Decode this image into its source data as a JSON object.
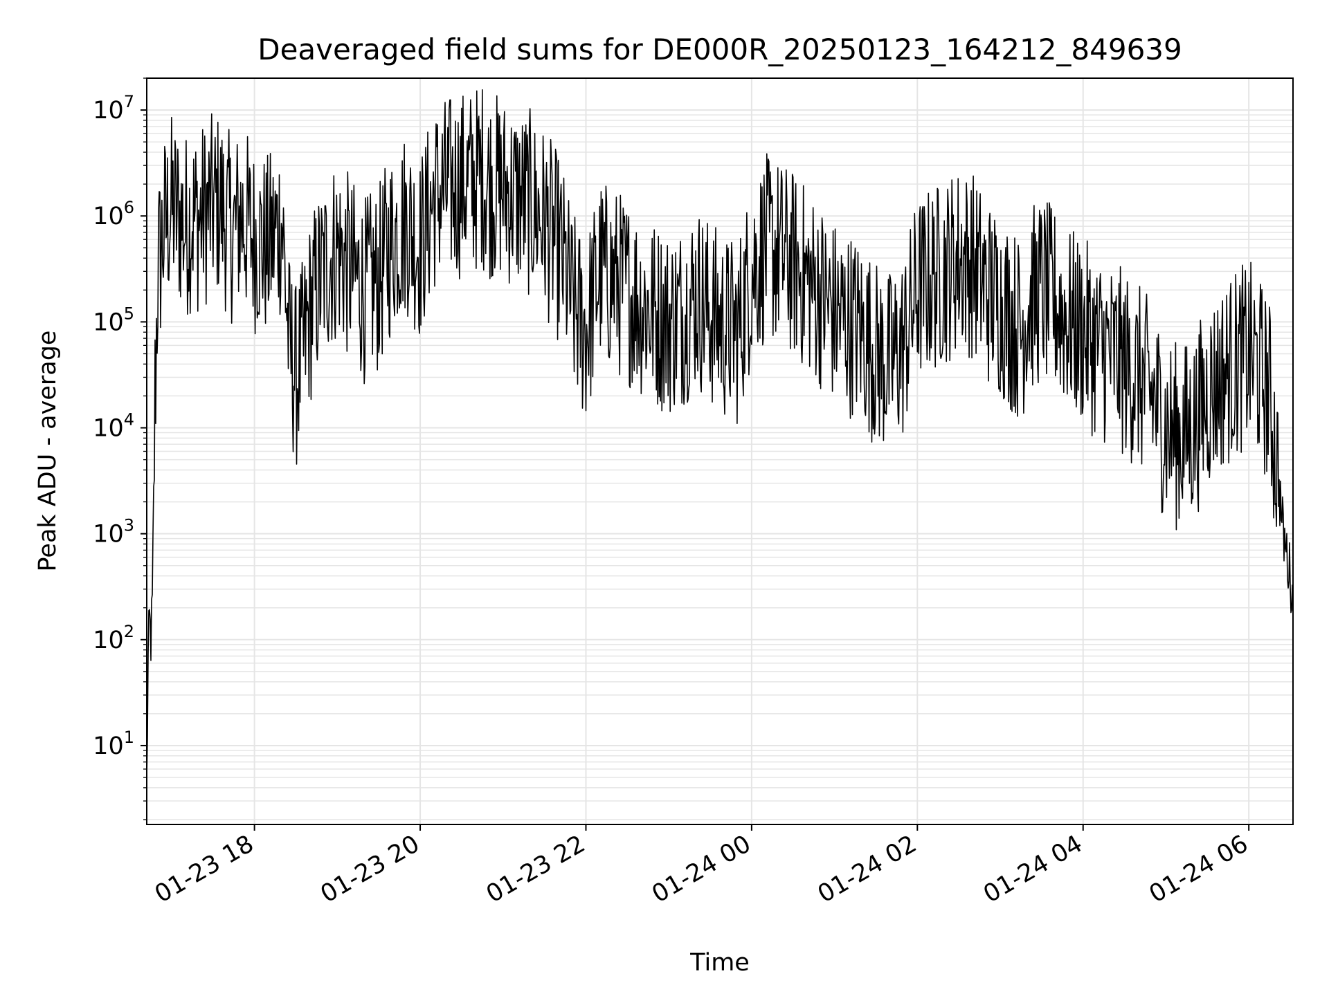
{
  "chart_data": {
    "type": "line",
    "title": "Deaveraged field sums for DE000R_20250123_164212_849639",
    "xlabel": "Time",
    "ylabel": "Peak ADU - average",
    "yscale": "log",
    "ylim": [
      1.8,
      20000000
    ],
    "xlim": [
      "01-23 16:42",
      "01-24 06:32"
    ],
    "grid": true,
    "legend": "none",
    "line_color": "#000000",
    "grid_color": "#e5e5e5",
    "x_ticks": [
      "01-23 18",
      "01-23 20",
      "01-23 22",
      "01-24 00",
      "01-24 02",
      "01-24 04",
      "01-24 06"
    ],
    "y_ticks": [
      {
        "base": "10",
        "exp": "1"
      },
      {
        "base": "10",
        "exp": "2"
      },
      {
        "base": "10",
        "exp": "3"
      },
      {
        "base": "10",
        "exp": "4"
      },
      {
        "base": "10",
        "exp": "5"
      },
      {
        "base": "10",
        "exp": "6"
      },
      {
        "base": "10",
        "exp": "7"
      }
    ],
    "series": [
      {
        "x": [
          "01-23 16:42",
          "01-23 16:43",
          "01-23 16:44",
          "01-23 16:45",
          "01-23 16:46",
          "01-23 16:48",
          "01-23 16:50",
          "01-23 16:55",
          "01-23 17:00",
          "01-23 17:05",
          "01-23 17:10",
          "01-23 17:15",
          "01-23 17:20",
          "01-23 17:25",
          "01-23 17:30",
          "01-23 17:35",
          "01-23 17:40",
          "01-23 17:45",
          "01-23 17:50",
          "01-23 17:55",
          "01-23 18:00",
          "01-23 18:10",
          "01-23 18:20",
          "01-23 18:25",
          "01-23 18:30",
          "01-23 18:35",
          "01-23 18:40",
          "01-23 18:45",
          "01-23 18:50",
          "01-23 18:55",
          "01-23 19:00",
          "01-23 19:10",
          "01-23 19:20",
          "01-23 19:30",
          "01-23 19:35",
          "01-23 19:40",
          "01-23 19:50",
          "01-23 20:00",
          "01-23 20:10",
          "01-23 20:20",
          "01-23 20:30",
          "01-23 20:40",
          "01-23 20:45",
          "01-23 20:50",
          "01-23 21:00",
          "01-23 21:10",
          "01-23 21:20",
          "01-23 21:30",
          "01-23 21:40",
          "01-23 21:45",
          "01-23 21:50",
          "01-23 22:00",
          "01-23 22:10",
          "01-23 22:20",
          "01-23 22:30",
          "01-23 22:40",
          "01-23 22:50",
          "01-23 23:00",
          "01-23 23:10",
          "01-23 23:20",
          "01-23 23:30",
          "01-23 23:40",
          "01-23 23:50",
          "01-24 00:00",
          "01-24 00:10",
          "01-24 00:20",
          "01-24 00:30",
          "01-24 00:40",
          "01-24 00:50",
          "01-24 01:00",
          "01-24 01:10",
          "01-24 01:20",
          "01-24 01:30",
          "01-24 01:40",
          "01-24 01:50",
          "01-24 02:00",
          "01-24 02:10",
          "01-24 02:20",
          "01-24 02:30",
          "01-24 02:40",
          "01-24 02:50",
          "01-24 03:00",
          "01-24 03:10",
          "01-24 03:15",
          "01-24 03:20",
          "01-24 03:30",
          "01-24 03:40",
          "01-24 03:50",
          "01-24 04:00",
          "01-24 04:10",
          "01-24 04:20",
          "01-24 04:30",
          "01-24 04:40",
          "01-24 04:50",
          "01-24 05:00",
          "01-24 05:10",
          "01-24 05:20",
          "01-24 05:30",
          "01-24 05:40",
          "01-24 05:50",
          "01-24 06:00",
          "01-24 06:05",
          "01-24 06:10",
          "01-24 06:15",
          "01-24 06:20",
          "01-24 06:25",
          "01-24 06:30",
          "01-24 06:32"
        ],
        "values": [
          4,
          60,
          150,
          100,
          200,
          20000,
          300000,
          800000,
          1200000,
          1000000,
          800000,
          1000000,
          900000,
          1100000,
          1200000,
          1300000,
          900000,
          700000,
          1000000,
          800000,
          600000,
          500000,
          900000,
          60000,
          30000,
          50000,
          120000,
          200000,
          300000,
          400000,
          500000,
          300000,
          200000,
          250000,
          400000,
          600000,
          900000,
          500000,
          1500000,
          1800000,
          2000000,
          2200000,
          2500000,
          2000000,
          1800000,
          1500000,
          1300000,
          900000,
          500000,
          300000,
          150000,
          80000,
          300000,
          250000,
          200000,
          150000,
          120000,
          100000,
          120000,
          180000,
          120000,
          90000,
          80000,
          300000,
          500000,
          450000,
          350000,
          250000,
          180000,
          120000,
          100000,
          80000,
          50000,
          40000,
          60000,
          200000,
          250000,
          300000,
          400000,
          350000,
          200000,
          150000,
          100000,
          80000,
          150000,
          200000,
          150000,
          100000,
          80000,
          60000,
          50000,
          40000,
          30000,
          20000,
          10000,
          8000,
          10000,
          20000,
          30000,
          40000,
          50000,
          40000,
          30000,
          20000,
          5000,
          1000,
          400,
          250
        ]
      }
    ]
  }
}
